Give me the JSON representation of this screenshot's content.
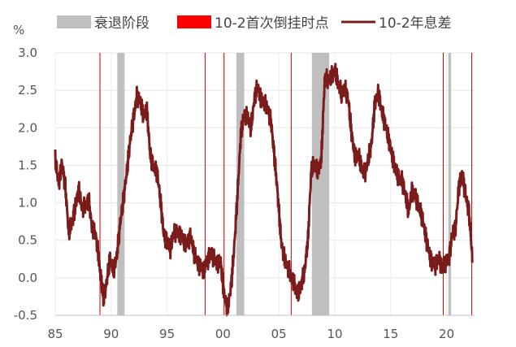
{
  "chart_data": {
    "type": "line",
    "ylabel": "%",
    "x_range": [
      1985,
      2022.5
    ],
    "ylim": [
      -0.5,
      3.0
    ],
    "y_ticks": [
      -0.5,
      0.0,
      0.5,
      1.0,
      1.5,
      2.0,
      2.5,
      3.0
    ],
    "y_tick_labels": [
      "-0.5",
      "0.0",
      "0.5",
      "1.0",
      "1.5",
      "2.0",
      "2.5",
      "3.0"
    ],
    "x_ticks": [
      1985,
      1990,
      1995,
      2000,
      2005,
      2010,
      2015,
      2020
    ],
    "x_tick_labels": [
      "85",
      "90",
      "95",
      "00",
      "05",
      "10",
      "15",
      "20"
    ],
    "grid": true,
    "legend_position": "top",
    "legend": [
      {
        "key": "recession",
        "label": "衰退阶段",
        "color": "#bfbfbf",
        "kind": "box"
      },
      {
        "key": "inversion",
        "label": "10-2首次倒挂时点",
        "color": "#ff0000",
        "kind": "box"
      },
      {
        "key": "spread",
        "label": "10-2年息差",
        "color": "#7b1c1c",
        "kind": "line"
      }
    ],
    "recessions": [
      {
        "start": 1990.55,
        "end": 1991.2
      },
      {
        "start": 2001.2,
        "end": 2001.9
      },
      {
        "start": 2007.95,
        "end": 2009.5
      },
      {
        "start": 2020.15,
        "end": 2020.4
      }
    ],
    "first_inversions": [
      1989.0,
      1998.4,
      2000.1,
      2006.1,
      2019.7,
      2022.25
    ],
    "series": [
      {
        "x": [
          1985.0,
          1985.3,
          1985.6,
          1985.9,
          1986.2,
          1986.5,
          1986.8,
          1987.1,
          1987.4,
          1987.7,
          1988.0,
          1988.3,
          1988.6,
          1988.9,
          1989.1,
          1989.3,
          1989.6,
          1989.9,
          1990.2,
          1990.5,
          1990.8,
          1991.1,
          1991.4,
          1991.7,
          1992.0,
          1992.3,
          1992.6,
          1992.9,
          1993.2,
          1993.5,
          1993.8,
          1994.1,
          1994.4,
          1994.7,
          1995.0,
          1995.3,
          1995.6,
          1995.9,
          1996.2,
          1996.5,
          1996.8,
          1997.1,
          1997.4,
          1997.7,
          1998.0,
          1998.3,
          1998.6,
          1998.9,
          1999.2,
          1999.5,
          1999.8,
          2000.1,
          2000.4,
          2000.7,
          2001.0,
          2001.3,
          2001.6,
          2001.9,
          2002.2,
          2002.5,
          2002.8,
          2003.1,
          2003.4,
          2003.7,
          2004.0,
          2004.3,
          2004.6,
          2004.9,
          2005.2,
          2005.5,
          2005.8,
          2006.1,
          2006.4,
          2006.7,
          2007.0,
          2007.3,
          2007.6,
          2007.9,
          2008.2,
          2008.5,
          2008.8,
          2009.1,
          2009.4,
          2009.7,
          2010.0,
          2010.3,
          2010.6,
          2010.9,
          2011.2,
          2011.5,
          2011.8,
          2012.1,
          2012.4,
          2012.7,
          2013.0,
          2013.3,
          2013.6,
          2013.9,
          2014.2,
          2014.5,
          2014.8,
          2015.1,
          2015.4,
          2015.7,
          2016.0,
          2016.3,
          2016.6,
          2016.9,
          2017.2,
          2017.5,
          2017.8,
          2018.1,
          2018.4,
          2018.7,
          2019.0,
          2019.3,
          2019.6,
          2019.9,
          2020.2,
          2020.5,
          2020.8,
          2021.1,
          2021.4,
          2021.7,
          2022.0,
          2022.3
        ],
        "y": [
          1.65,
          1.3,
          1.5,
          1.15,
          0.6,
          0.8,
          1.0,
          1.15,
          0.85,
          0.95,
          1.1,
          0.7,
          0.55,
          0.2,
          0.0,
          -0.25,
          -0.1,
          0.2,
          0.1,
          0.35,
          0.75,
          1.0,
          1.35,
          1.85,
          2.2,
          2.45,
          2.3,
          2.1,
          2.25,
          1.7,
          1.5,
          1.35,
          1.0,
          0.6,
          0.55,
          0.4,
          0.55,
          0.55,
          0.6,
          0.55,
          0.45,
          0.5,
          0.3,
          0.25,
          0.2,
          0.1,
          0.15,
          0.3,
          0.3,
          0.25,
          0.2,
          -0.3,
          -0.45,
          -0.1,
          0.45,
          1.1,
          1.85,
          2.15,
          2.2,
          2.05,
          2.35,
          2.5,
          2.35,
          2.4,
          2.3,
          2.05,
          1.55,
          1.1,
          0.55,
          0.3,
          0.1,
          -0.05,
          -0.1,
          -0.15,
          -0.05,
          0.05,
          0.45,
          1.45,
          1.6,
          1.45,
          1.55,
          2.6,
          2.65,
          2.75,
          2.8,
          2.55,
          2.4,
          2.55,
          2.45,
          1.95,
          1.55,
          1.6,
          1.5,
          1.45,
          1.6,
          1.75,
          2.3,
          2.5,
          2.3,
          2.05,
          1.8,
          1.6,
          1.5,
          1.4,
          1.3,
          1.05,
          0.85,
          1.2,
          1.15,
          0.95,
          0.75,
          0.55,
          0.4,
          0.25,
          0.15,
          0.2,
          0.1,
          0.25,
          0.3,
          0.55,
          0.6,
          1.2,
          1.45,
          1.15,
          0.85,
          0.2
        ]
      }
    ]
  }
}
